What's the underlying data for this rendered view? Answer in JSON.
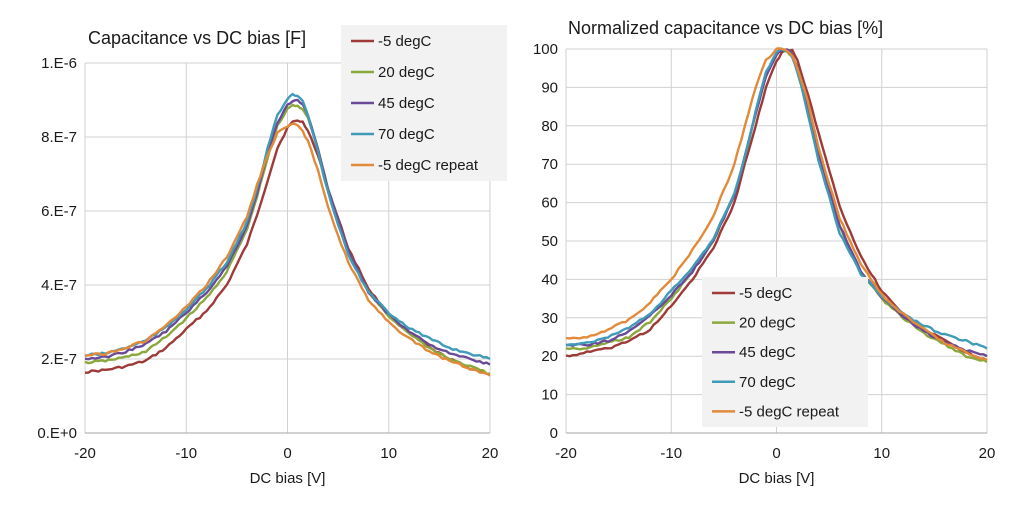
{
  "chart_data": [
    {
      "type": "line",
      "title": "Capacitance vs DC bias [F]",
      "xlabel": "DC bias [V]",
      "ylabel": "",
      "xlim": [
        -20,
        20
      ],
      "ylim": [
        0,
        1e-06
      ],
      "x_ticks": [
        -20,
        -10,
        0,
        10,
        20
      ],
      "x_tick_labels": [
        "-20",
        "-10",
        "0",
        "10",
        "20"
      ],
      "y_ticks": [
        0,
        2e-07,
        4e-07,
        6e-07,
        8e-07,
        1e-06
      ],
      "y_tick_labels": [
        "0.E+0",
        "2.E-7",
        "4.E-7",
        "6.E-7",
        "8.E-7",
        "1.E-6"
      ],
      "grid": true,
      "legend_position": "top-right",
      "x": [
        -20,
        -18,
        -16,
        -14,
        -12,
        -10,
        -8,
        -6,
        -4,
        -3,
        -2,
        -1,
        0,
        0.5,
        1,
        1.5,
        2,
        3,
        4,
        6,
        8,
        10,
        12,
        14,
        16,
        18,
        20
      ],
      "series": [
        {
          "name": "-5 degC",
          "color": "#9e3a38",
          "values": [
            1.65e-07,
            1.7e-07,
            1.8e-07,
            1.95e-07,
            2.3e-07,
            2.8e-07,
            3.3e-07,
            4e-07,
            5.1e-07,
            5.9e-07,
            6.8e-07,
            7.7e-07,
            8.25e-07,
            8.4e-07,
            8.45e-07,
            8.4e-07,
            8.2e-07,
            7.5e-07,
            6.6e-07,
            5e-07,
            3.9e-07,
            3.2e-07,
            2.7e-07,
            2.3e-07,
            2e-07,
            1.75e-07,
            1.6e-07
          ]
        },
        {
          "name": "20 degC",
          "color": "#8aa83c",
          "values": [
            1.9e-07,
            1.95e-07,
            2.05e-07,
            2.2e-07,
            2.6e-07,
            3.1e-07,
            3.65e-07,
            4.35e-07,
            5.5e-07,
            6.4e-07,
            7.4e-07,
            8.3e-07,
            8.75e-07,
            8.85e-07,
            8.85e-07,
            8.75e-07,
            8.55e-07,
            7.7e-07,
            6.6e-07,
            4.9e-07,
            3.8e-07,
            3.15e-07,
            2.7e-07,
            2.3e-07,
            2e-07,
            1.8e-07,
            1.6e-07
          ]
        },
        {
          "name": "45 degC",
          "color": "#6a4a96",
          "values": [
            2e-07,
            2.05e-07,
            2.2e-07,
            2.4e-07,
            2.75e-07,
            3.25e-07,
            3.8e-07,
            4.5e-07,
            5.6e-07,
            6.5e-07,
            7.5e-07,
            8.4e-07,
            8.85e-07,
            8.95e-07,
            9e-07,
            8.9e-07,
            8.6e-07,
            7.7e-07,
            6.6e-07,
            4.9e-07,
            3.8e-07,
            3.2e-07,
            2.75e-07,
            2.4e-07,
            2.15e-07,
            2e-07,
            1.85e-07
          ]
        },
        {
          "name": "70 degC",
          "color": "#3f9bb8",
          "values": [
            2.1e-07,
            2.15e-07,
            2.3e-07,
            2.5e-07,
            2.85e-07,
            3.35e-07,
            3.9e-07,
            4.6e-07,
            5.7e-07,
            6.6e-07,
            7.65e-07,
            8.6e-07,
            9.05e-07,
            9.15e-07,
            9.1e-07,
            8.95e-07,
            8.6e-07,
            7.6e-07,
            6.5e-07,
            4.8e-07,
            3.8e-07,
            3.25e-07,
            2.85e-07,
            2.55e-07,
            2.3e-07,
            2.15e-07,
            2e-07
          ]
        },
        {
          "name": "-5 degC repeat",
          "color": "#e28a3a",
          "values": [
            2.1e-07,
            2.15e-07,
            2.3e-07,
            2.5e-07,
            2.9e-07,
            3.4e-07,
            4e-07,
            4.75e-07,
            5.85e-07,
            6.7e-07,
            7.5e-07,
            8.1e-07,
            8.3e-07,
            8.35e-07,
            8.3e-07,
            8.15e-07,
            7.9e-07,
            7.1e-07,
            6.1e-07,
            4.6e-07,
            3.6e-07,
            3e-07,
            2.55e-07,
            2.2e-07,
            1.95e-07,
            1.75e-07,
            1.55e-07
          ]
        }
      ]
    },
    {
      "type": "line",
      "title": "Normalized capacitance vs DC bias [%]",
      "xlabel": "DC bias [V]",
      "ylabel": "",
      "xlim": [
        -20,
        20
      ],
      "ylim": [
        0,
        100
      ],
      "x_ticks": [
        -20,
        -10,
        0,
        10,
        20
      ],
      "x_tick_labels": [
        "-20",
        "-10",
        "0",
        "10",
        "20"
      ],
      "y_ticks": [
        0,
        10,
        20,
        30,
        40,
        50,
        60,
        70,
        80,
        90,
        100
      ],
      "y_tick_labels": [
        "0",
        "10",
        "20",
        "30",
        "40",
        "50",
        "60",
        "70",
        "80",
        "90",
        "100"
      ],
      "grid": true,
      "legend_position": "bottom-center",
      "x": [
        -20,
        -18,
        -16,
        -14,
        -12,
        -10,
        -8,
        -6,
        -4,
        -3,
        -2,
        -1,
        0,
        0.5,
        1,
        1.5,
        2,
        3,
        4,
        6,
        8,
        10,
        12,
        14,
        16,
        18,
        20
      ],
      "series": [
        {
          "name": "-5 degC",
          "color": "#9e3a38",
          "values": [
            20,
            21,
            22,
            24,
            27,
            33,
            40,
            48,
            60,
            70,
            80,
            90,
            97,
            99,
            100,
            99.5,
            97,
            88,
            78,
            59,
            46,
            37,
            31,
            27,
            24,
            21,
            19
          ]
        },
        {
          "name": "20 degC",
          "color": "#8aa83c",
          "values": [
            22,
            22,
            23.5,
            25,
            29,
            35,
            42,
            50,
            62,
            72,
            83,
            93,
            98.5,
            100,
            99.5,
            98,
            95,
            85,
            73,
            54,
            42,
            35,
            30,
            26,
            23,
            20,
            18.5
          ]
        },
        {
          "name": "45 degC",
          "color": "#6a4a96",
          "values": [
            23,
            23,
            24,
            26.5,
            30.5,
            36,
            42,
            50,
            62,
            72,
            83,
            93,
            98.5,
            99.5,
            100,
            98.5,
            95,
            85,
            73,
            54,
            42,
            35.5,
            30.5,
            26.5,
            23.5,
            21.5,
            20
          ]
        },
        {
          "name": "70 degC",
          "color": "#3f9bb8",
          "values": [
            23,
            23.5,
            25,
            27.5,
            31,
            37,
            43,
            50.5,
            62.5,
            72,
            83.5,
            94,
            99,
            100,
            99.5,
            98,
            94,
            83,
            71,
            52,
            41.5,
            35.5,
            31,
            28,
            25.5,
            24,
            22
          ]
        },
        {
          "name": "-5 degC repeat",
          "color": "#e28a3a",
          "values": [
            24.5,
            25,
            27,
            29.5,
            34,
            40,
            47.5,
            56.5,
            70,
            80,
            90,
            97,
            100,
            100,
            99.5,
            98,
            95,
            86,
            74,
            56,
            44,
            36,
            31,
            27,
            23.5,
            21,
            19
          ]
        }
      ]
    }
  ]
}
